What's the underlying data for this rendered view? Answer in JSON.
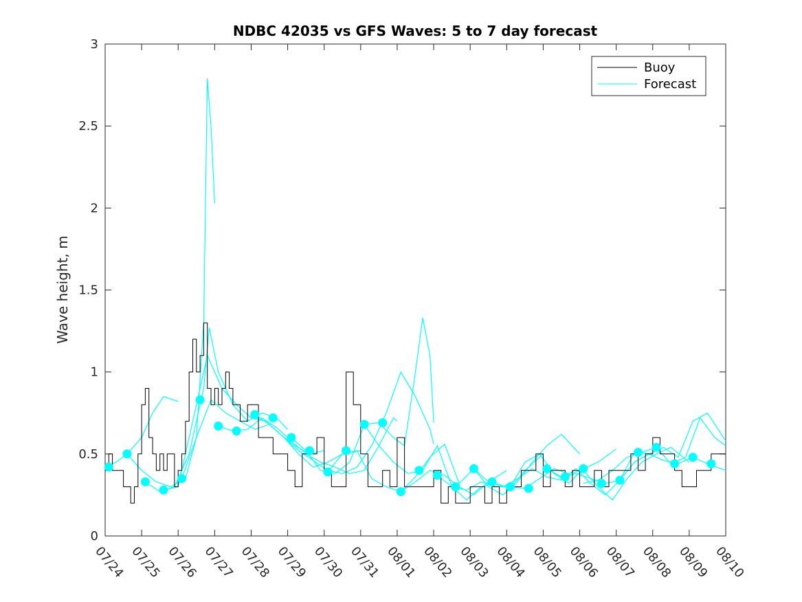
{
  "chart_data": {
    "type": "line",
    "title": "NDBC 42035 vs GFS Waves: 5 to 7 day forecast",
    "xlabel": "",
    "ylabel": "Wave height, m",
    "x_tick_labels": [
      "07/24",
      "07/25",
      "07/26",
      "07/27",
      "07/28",
      "07/29",
      "07/30",
      "07/31",
      "08/01",
      "08/02",
      "08/03",
      "08/04",
      "08/05",
      "08/06",
      "08/07",
      "08/08",
      "08/09",
      "08/10"
    ],
    "y_tick_labels": [
      "0",
      "0.5",
      "1",
      "1.5",
      "2",
      "2.5",
      "3"
    ],
    "xlim_days": [
      0,
      17
    ],
    "ylim": [
      0,
      3
    ],
    "grid": false,
    "legend": {
      "position": "top-right",
      "entries": [
        "Buoy",
        "Forecast"
      ]
    },
    "colors": {
      "buoy": "#000000",
      "forecast": "#00ffff"
    },
    "series": [
      {
        "name": "Buoy",
        "x": [
          0,
          0.1,
          0.2,
          0.3,
          0.4,
          0.5,
          0.6,
          0.7,
          0.8,
          0.9,
          1.0,
          1.1,
          1.2,
          1.3,
          1.4,
          1.5,
          1.6,
          1.7,
          1.8,
          1.9,
          2.0,
          2.1,
          2.2,
          2.3,
          2.4,
          2.5,
          2.6,
          2.7,
          2.8,
          2.9,
          3.0,
          3.1,
          3.2,
          3.3,
          3.4,
          3.5,
          3.6,
          3.7,
          3.8,
          3.9,
          4.0,
          4.2,
          4.4,
          4.6,
          4.8,
          5.0,
          5.2,
          5.4,
          5.6,
          5.8,
          6.0,
          6.2,
          6.4,
          6.6,
          6.8,
          7.0,
          7.2,
          7.4,
          7.6,
          7.8,
          8.0,
          8.2,
          8.4,
          8.6,
          8.8,
          9.0,
          9.2,
          9.4,
          9.6,
          9.8,
          10.0,
          10.2,
          10.4,
          10.6,
          10.8,
          11.0,
          11.2,
          11.4,
          11.6,
          11.8,
          12.0,
          12.2,
          12.4,
          12.6,
          12.8,
          13.0,
          13.2,
          13.4,
          13.6,
          13.8,
          14.0,
          14.2,
          14.4,
          14.6,
          14.8,
          15.0,
          15.2,
          15.4,
          15.6,
          15.8,
          16.0,
          16.2,
          16.4,
          16.6,
          16.8,
          17.0
        ],
        "values": [
          0.4,
          0.5,
          0.4,
          0.4,
          0.4,
          0.3,
          0.3,
          0.2,
          0.3,
          0.5,
          0.8,
          0.9,
          0.6,
          0.5,
          0.4,
          0.5,
          0.4,
          0.5,
          0.5,
          0.3,
          0.4,
          0.5,
          0.7,
          1.0,
          1.2,
          1.0,
          1.1,
          1.3,
          0.9,
          0.8,
          0.9,
          0.8,
          0.9,
          1.0,
          0.9,
          0.8,
          0.8,
          0.7,
          0.7,
          0.8,
          0.8,
          0.6,
          0.6,
          0.5,
          0.5,
          0.4,
          0.3,
          0.5,
          0.5,
          0.6,
          0.4,
          0.3,
          0.3,
          1.0,
          0.8,
          0.5,
          0.3,
          0.3,
          0.4,
          0.3,
          0.6,
          0.3,
          0.3,
          0.3,
          0.3,
          0.4,
          0.2,
          0.3,
          0.2,
          0.2,
          0.3,
          0.3,
          0.2,
          0.3,
          0.2,
          0.3,
          0.3,
          0.4,
          0.4,
          0.5,
          0.3,
          0.4,
          0.4,
          0.3,
          0.4,
          0.3,
          0.3,
          0.4,
          0.3,
          0.4,
          0.4,
          0.4,
          0.5,
          0.4,
          0.5,
          0.6,
          0.5,
          0.5,
          0.4,
          0.3,
          0.3,
          0.4,
          0.4,
          0.5,
          0.5,
          0.5
        ]
      },
      {
        "name": "Forecast",
        "runs": [
          {
            "x": [
              0,
              0.3,
              0.6,
              1.0,
              1.3,
              1.6,
              2.0
            ],
            "values": [
              0.42,
              0.45,
              0.5,
              0.6,
              0.75,
              0.85,
              0.82
            ]
          },
          {
            "x": [
              0.6,
              1.0,
              1.4,
              1.8,
              2.2,
              2.5,
              2.7,
              2.8,
              2.9,
              3.0
            ],
            "values": [
              0.5,
              0.4,
              0.33,
              0.3,
              0.35,
              0.6,
              1.3,
              2.79,
              2.5,
              2.03
            ]
          },
          {
            "x": [
              1.1,
              1.5,
              1.9,
              2.3,
              2.7,
              2.85,
              3.1,
              3.5,
              3.9,
              4.3,
              4.7,
              5.0
            ],
            "values": [
              0.33,
              0.27,
              0.3,
              0.5,
              0.9,
              1.27,
              1.0,
              0.8,
              0.7,
              0.75,
              0.72,
              0.65
            ]
          },
          {
            "x": [
              1.6,
              2.0,
              2.4,
              2.8,
              3.2,
              3.6,
              4.0,
              4.4,
              4.8,
              5.2,
              5.6,
              6.0
            ],
            "values": [
              0.28,
              0.3,
              0.7,
              1.1,
              0.9,
              0.8,
              0.72,
              0.7,
              0.62,
              0.55,
              0.5,
              0.52
            ]
          },
          {
            "x": [
              2.1,
              2.5,
              2.9,
              3.3,
              3.7,
              4.1,
              4.5,
              4.9,
              5.3,
              5.7,
              6.1,
              6.5,
              7.0
            ],
            "values": [
              0.35,
              0.6,
              0.83,
              0.75,
              0.7,
              0.65,
              0.68,
              0.6,
              0.5,
              0.42,
              0.45,
              0.5,
              0.52
            ]
          },
          {
            "x": [
              3.1,
              3.5,
              3.9,
              4.3,
              4.7,
              5.1,
              5.5,
              5.9,
              6.3,
              6.7,
              7.1,
              7.5,
              7.9,
              8.0
            ],
            "values": [
              0.67,
              0.64,
              0.65,
              0.72,
              0.66,
              0.58,
              0.5,
              0.45,
              0.42,
              0.38,
              0.4,
              0.55,
              0.72,
              0.7
            ]
          },
          {
            "x": [
              4.1,
              4.5,
              4.9,
              5.3,
              5.7,
              6.1,
              6.5,
              6.9,
              7.3,
              7.7,
              8.1,
              8.5,
              8.9,
              9.0
            ],
            "values": [
              0.74,
              0.68,
              0.6,
              0.52,
              0.46,
              0.4,
              0.38,
              0.42,
              0.55,
              0.75,
              1.0,
              0.85,
              0.65,
              0.56
            ]
          },
          {
            "x": [
              5.1,
              5.5,
              5.9,
              6.3,
              6.7,
              7.1,
              7.5,
              7.9,
              8.2,
              8.5,
              8.7,
              8.9,
              9.0
            ],
            "values": [
              0.6,
              0.52,
              0.4,
              0.38,
              0.45,
              0.68,
              0.69,
              0.6,
              0.55,
              1.0,
              1.33,
              1.1,
              0.69
            ]
          },
          {
            "x": [
              6.1,
              6.5,
              6.9,
              7.3,
              7.7,
              8.1,
              8.5,
              8.9,
              9.3,
              9.7,
              10.1,
              10.5,
              11.0
            ],
            "values": [
              0.39,
              0.5,
              0.52,
              0.35,
              0.3,
              0.27,
              0.33,
              0.4,
              0.37,
              0.3,
              0.25,
              0.33,
              0.4
            ]
          },
          {
            "x": [
              7.1,
              7.5,
              7.9,
              8.3,
              8.7,
              9.1,
              9.5,
              9.9,
              10.3,
              10.7,
              11.1,
              11.5,
              12.0
            ],
            "values": [
              0.68,
              0.55,
              0.45,
              0.38,
              0.4,
              0.55,
              0.3,
              0.22,
              0.3,
              0.32,
              0.29,
              0.4,
              0.5
            ]
          },
          {
            "x": [
              8.1,
              8.5,
              8.9,
              9.3,
              9.7,
              10.1,
              10.5,
              10.9,
              11.3,
              11.7,
              12.1,
              12.5,
              13.0
            ],
            "values": [
              0.27,
              0.36,
              0.48,
              0.56,
              0.32,
              0.41,
              0.3,
              0.25,
              0.33,
              0.45,
              0.55,
              0.62,
              0.5
            ]
          },
          {
            "x": [
              9.1,
              9.5,
              9.9,
              10.3,
              10.7,
              11.1,
              11.5,
              11.9,
              12.3,
              12.7,
              13.1,
              13.5,
              14.0
            ],
            "values": [
              0.37,
              0.3,
              0.28,
              0.33,
              0.3,
              0.3,
              0.45,
              0.5,
              0.38,
              0.32,
              0.41,
              0.45,
              0.53
            ]
          },
          {
            "x": [
              10.1,
              10.5,
              10.9,
              11.3,
              11.7,
              12.1,
              12.5,
              12.9,
              13.3,
              13.7,
              14.1,
              14.5,
              15.0
            ],
            "values": [
              0.41,
              0.33,
              0.3,
              0.35,
              0.41,
              0.36,
              0.34,
              0.41,
              0.32,
              0.25,
              0.34,
              0.51,
              0.5
            ]
          },
          {
            "x": [
              11.1,
              11.5,
              11.9,
              12.3,
              12.7,
              13.1,
              13.5,
              13.9,
              14.3,
              14.7,
              15.1,
              15.5,
              16.0
            ],
            "values": [
              0.3,
              0.29,
              0.35,
              0.41,
              0.38,
              0.4,
              0.3,
              0.22,
              0.35,
              0.45,
              0.5,
              0.54,
              0.45
            ]
          },
          {
            "x": [
              12.1,
              12.5,
              12.9,
              13.3,
              13.7,
              14.1,
              14.5,
              14.9,
              15.3,
              15.7,
              16.1,
              16.5,
              17.0
            ],
            "values": [
              0.41,
              0.36,
              0.38,
              0.35,
              0.32,
              0.34,
              0.45,
              0.5,
              0.54,
              0.48,
              0.7,
              0.75,
              0.58
            ]
          },
          {
            "x": [
              13.1,
              13.5,
              13.9,
              14.3,
              14.7,
              15.1,
              15.5,
              15.9,
              16.3,
              16.7,
              17.0
            ],
            "values": [
              0.32,
              0.34,
              0.4,
              0.48,
              0.51,
              0.54,
              0.44,
              0.48,
              0.72,
              0.6,
              0.55
            ]
          },
          {
            "x": [
              14.1,
              14.5,
              14.9,
              15.3,
              15.7,
              16.1,
              16.5,
              17.0
            ],
            "values": [
              0.34,
              0.45,
              0.5,
              0.46,
              0.44,
              0.48,
              0.44,
              0.4
            ]
          }
        ],
        "markers": {
          "x": [
            0.1,
            0.6,
            1.1,
            1.6,
            2.1,
            2.6,
            3.1,
            3.6,
            4.1,
            4.6,
            5.1,
            5.6,
            6.1,
            6.6,
            7.1,
            7.6,
            8.1,
            8.6,
            9.1,
            9.6,
            10.1,
            10.6,
            11.1,
            11.6,
            12.1,
            12.6,
            13.1,
            13.6,
            14.1,
            14.6,
            15.1,
            15.6,
            16.1,
            16.6
          ],
          "values": [
            0.42,
            0.5,
            0.33,
            0.28,
            0.35,
            0.83,
            0.67,
            0.64,
            0.74,
            0.72,
            0.6,
            0.52,
            0.39,
            0.52,
            0.68,
            0.69,
            0.27,
            0.4,
            0.37,
            0.3,
            0.41,
            0.33,
            0.3,
            0.29,
            0.41,
            0.36,
            0.41,
            0.32,
            0.34,
            0.51,
            0.54,
            0.44,
            0.48,
            0.44
          ]
        }
      }
    ]
  }
}
